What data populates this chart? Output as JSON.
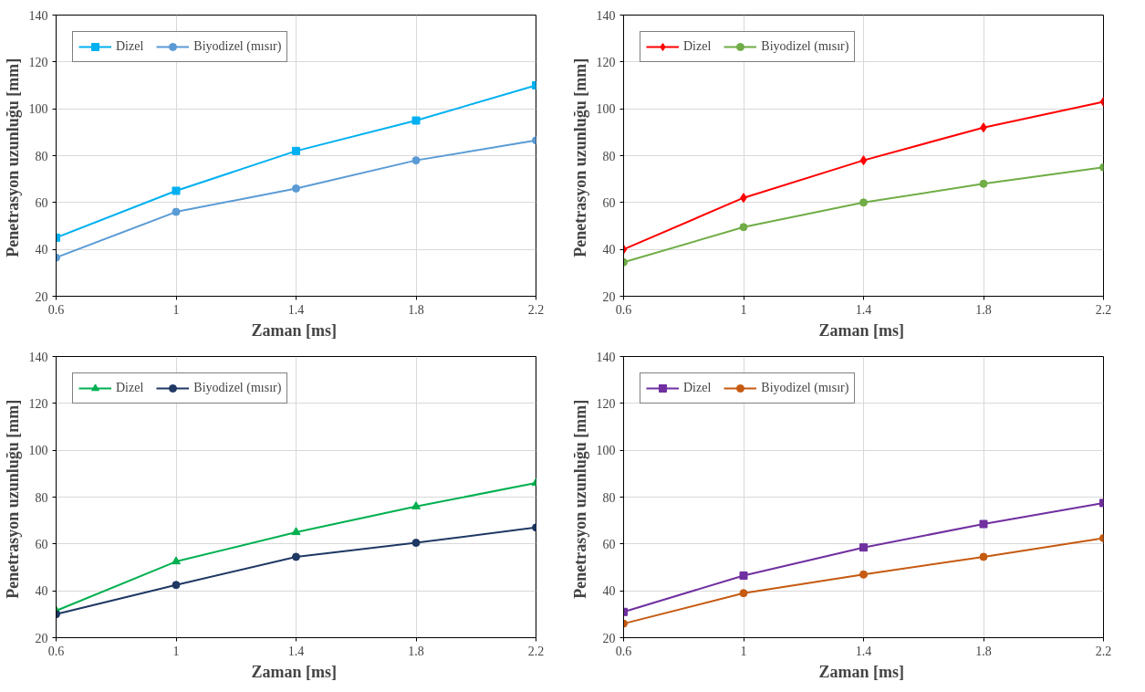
{
  "chart_data": [
    {
      "type": "line",
      "xlabel": "Zaman  [ms]",
      "ylabel": "Penetrasyon uzunluğu  [mm]",
      "x": [
        0.6,
        1,
        1.4,
        1.8,
        2.2
      ],
      "xlim": [
        0.6,
        2.2
      ],
      "xticks": [
        0.6,
        1,
        1.4,
        1.8,
        2.2
      ],
      "ylim": [
        20,
        140
      ],
      "yticks": [
        20,
        40,
        60,
        80,
        100,
        120,
        140
      ],
      "grid": true,
      "legend": "top left",
      "series": [
        {
          "name": "Dizel",
          "color": "#00b0f0",
          "marker": "square",
          "values": [
            45,
            65,
            82,
            95,
            110
          ]
        },
        {
          "name": "Biyodizel (mısır)",
          "color": "#5b9bd5",
          "marker": "circle",
          "values": [
            36.5,
            56,
            66,
            78,
            86.5
          ]
        }
      ]
    },
    {
      "type": "line",
      "xlabel": "Zaman  [ms]",
      "ylabel": "Penetrasyon uzunluğu  [mm]",
      "x": [
        0.6,
        1,
        1.4,
        1.8,
        2.2
      ],
      "xlim": [
        0.6,
        2.2
      ],
      "xticks": [
        0.6,
        1,
        1.4,
        1.8,
        2.2
      ],
      "ylim": [
        20,
        140
      ],
      "yticks": [
        20,
        40,
        60,
        80,
        100,
        120,
        140
      ],
      "grid": true,
      "legend": "top left",
      "series": [
        {
          "name": "Dizel",
          "color": "#ff0000",
          "marker": "diamond",
          "values": [
            40,
            62,
            78,
            92,
            103
          ]
        },
        {
          "name": "Biyodizel (mısır)",
          "color": "#70ad47",
          "marker": "circle",
          "values": [
            34.5,
            49.5,
            60,
            68,
            75
          ]
        }
      ]
    },
    {
      "type": "line",
      "xlabel": "Zaman  [ms]",
      "ylabel": "Penetrasyon uzunluğu  [mm]",
      "x": [
        0.6,
        1,
        1.4,
        1.8,
        2.2
      ],
      "xlim": [
        0.6,
        2.2
      ],
      "xticks": [
        0.6,
        1,
        1.4,
        1.8,
        2.2
      ],
      "ylim": [
        20,
        140
      ],
      "yticks": [
        20,
        40,
        60,
        80,
        100,
        120,
        140
      ],
      "grid": true,
      "legend": "top left",
      "series": [
        {
          "name": "Dizel",
          "color": "#00b050",
          "marker": "triangle",
          "values": [
            31.5,
            52.5,
            65,
            76,
            86
          ]
        },
        {
          "name": "Biyodizel (mısır)",
          "color": "#1f3864",
          "marker": "circle",
          "values": [
            30,
            42.5,
            54.5,
            60.5,
            67
          ]
        }
      ]
    },
    {
      "type": "line",
      "xlabel": "Zaman  [ms]",
      "ylabel": "Penetrasyon uzunluğu  [mm]",
      "x": [
        0.6,
        1,
        1.4,
        1.8,
        2.2
      ],
      "xlim": [
        0.6,
        2.2
      ],
      "xticks": [
        0.6,
        1,
        1.4,
        1.8,
        2.2
      ],
      "ylim": [
        20,
        140
      ],
      "yticks": [
        20,
        40,
        60,
        80,
        100,
        120,
        140
      ],
      "grid": true,
      "legend": "top left",
      "series": [
        {
          "name": "Dizel",
          "color": "#7030a0",
          "marker": "square",
          "values": [
            31,
            46.5,
            58.5,
            68.5,
            77.5
          ]
        },
        {
          "name": "Biyodizel (mısır)",
          "color": "#c55a11",
          "marker": "circle",
          "values": [
            26,
            39,
            47,
            54.5,
            62.5
          ]
        }
      ]
    }
  ]
}
